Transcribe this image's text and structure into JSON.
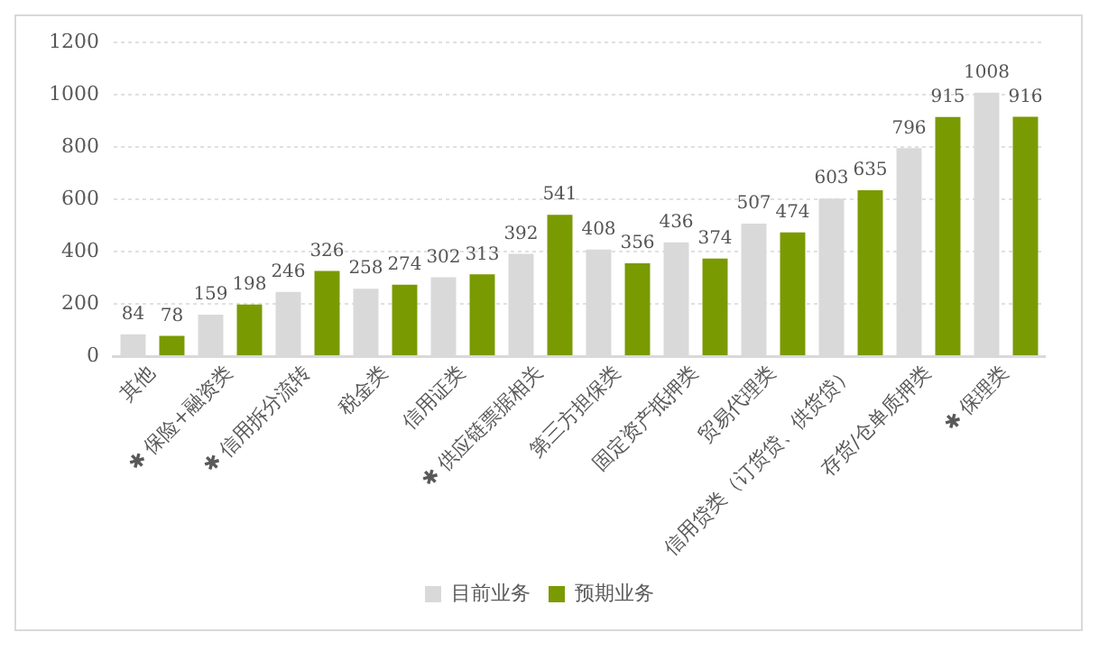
{
  "chart_data": {
    "type": "bar",
    "categories": [
      "其他",
      "✱ 保险+融资类",
      "✱ 信用拆分流转",
      "税金类",
      "信用证类",
      "✱ 供应链票据相关",
      "第三方担保类",
      "固定资产抵押类",
      "贸易代理类",
      "信用贷类（订货贷、供货贷）",
      "存货/仓单质押类",
      "✱ 保理类"
    ],
    "series": [
      {
        "name": "目前业务",
        "color": "#d9d9d9",
        "values": [
          84,
          159,
          246,
          258,
          302,
          392,
          408,
          436,
          507,
          603,
          796,
          1008
        ]
      },
      {
        "name": "预期业务",
        "color": "#7a9a01",
        "values": [
          78,
          198,
          326,
          274,
          313,
          541,
          356,
          374,
          474,
          635,
          915,
          916
        ]
      }
    ],
    "ylim": [
      0,
      1200
    ],
    "yticks": [
      0,
      200,
      400,
      600,
      800,
      1000,
      1200
    ],
    "grid": "y",
    "legend": "bottom",
    "data_labels": true
  }
}
